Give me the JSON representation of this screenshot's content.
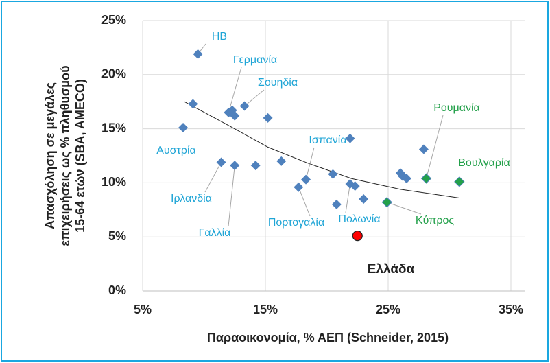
{
  "chart_data": {
    "type": "scatter",
    "y_label": [
      "Απασχόληση σε μεγάλες",
      "επιχειρήσεις ως % πληθυσμού",
      "15-64 ετών (SBA, AMECO)"
    ],
    "x_label": "Παραοικονομία, % ΑΕΠ (Schneider, 2015)",
    "xlim": [
      5,
      35
    ],
    "xticks": [
      {
        "value": 5,
        "label": "5%"
      },
      {
        "value": 15,
        "label": "15%"
      },
      {
        "value": 25,
        "label": "25%"
      },
      {
        "value": 35,
        "label": "35%"
      }
    ],
    "ylim": [
      0,
      25
    ],
    "yticks": [
      {
        "value": 0,
        "label": "0%"
      },
      {
        "value": 5,
        "label": "5%"
      },
      {
        "value": 10,
        "label": "10%"
      },
      {
        "value": 15,
        "label": "15%"
      },
      {
        "value": 20,
        "label": "20%"
      },
      {
        "value": 25,
        "label": "25%"
      }
    ],
    "grid": true,
    "series": [
      {
        "color": "#4f81bd",
        "marker": "diamond",
        "label_color": "#1fa5d6",
        "x": [
          9.5,
          9.1,
          8.3,
          12.0,
          12.3,
          12.5,
          13.3,
          15.2,
          11.4,
          12.5,
          14.2,
          16.3,
          17.7,
          18.3,
          20.8,
          20.5,
          21.9,
          21.9,
          22.3,
          23.0,
          26.0,
          26.2,
          26.5,
          27.9
        ],
        "values": [
          21.9,
          17.3,
          15.1,
          16.5,
          16.7,
          16.2,
          17.1,
          16.0,
          11.9,
          11.6,
          11.6,
          12.0,
          9.6,
          10.3,
          8.0,
          10.8,
          14.1,
          9.9,
          9.7,
          8.5,
          10.9,
          10.6,
          10.4,
          13.1
        ],
        "labels": [
          "ΗΒ",
          null,
          "Αυστρία",
          "Γερμανία",
          null,
          null,
          "Σουηδία",
          null,
          "Ιρλανδία",
          "Γαλλία",
          null,
          null,
          "Πορτογαλία",
          "Ισπανία",
          null,
          null,
          null,
          "Πολωνία",
          null,
          null,
          null,
          null,
          null,
          null
        ]
      },
      {
        "color": "#23a04a",
        "marker": "diamond",
        "label_color": "#23a04a",
        "x": [
          28.1,
          30.8,
          24.9
        ],
        "values": [
          10.4,
          10.1,
          8.2
        ],
        "labels": [
          "Ρουμανία",
          "Βουλγαρία",
          "Κύπρος"
        ]
      },
      {
        "color": "#ff0000",
        "marker": "circle",
        "label_color": "#222222",
        "x": [
          22.5
        ],
        "values": [
          5.1
        ],
        "labels": [
          "Ελλάδα"
        ]
      }
    ],
    "trendline": {
      "color": "#222222",
      "x": [
        8.4,
        12,
        15.2,
        18.5,
        22,
        26,
        30.8
      ],
      "values": [
        17.5,
        15.3,
        13.3,
        11.8,
        10.4,
        9.4,
        8.6
      ]
    }
  }
}
